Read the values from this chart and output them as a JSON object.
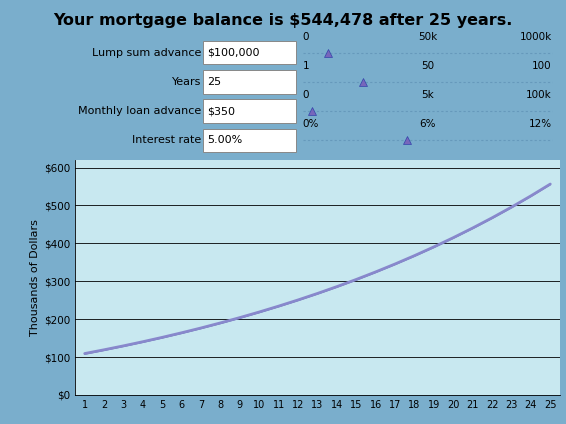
{
  "title": "Your mortgage balance is $544,478 after 25 years.",
  "title_bg": "#5b8dd9",
  "header_bg": "#a0c0e0",
  "chart_bg": "#c8e8f0",
  "outer_bg": "#7aaecc",
  "row_labels": [
    "Lump sum advance",
    "Years",
    "Monthly loan advance",
    "Interest rate"
  ],
  "row_values": [
    "$100,000",
    "25",
    "$350",
    "5.00%"
  ],
  "slider_mins": [
    "0",
    "1",
    "0",
    "0%"
  ],
  "slider_mids": [
    "50k",
    "50",
    "5k",
    "6%"
  ],
  "slider_maxs": [
    "1000k",
    "100",
    "100k",
    "12%"
  ],
  "slider_poses": [
    0.1,
    0.24,
    0.035,
    0.417
  ],
  "ylabel": "Thousands of Dollars",
  "yticks": [
    0,
    100,
    200,
    300,
    400,
    500,
    600
  ],
  "ytick_labels": [
    "$0",
    "$100",
    "$200",
    "$300",
    "$400",
    "$500",
    "$600"
  ],
  "line_color1": "#8888cc",
  "line_color2": "#5566aa"
}
